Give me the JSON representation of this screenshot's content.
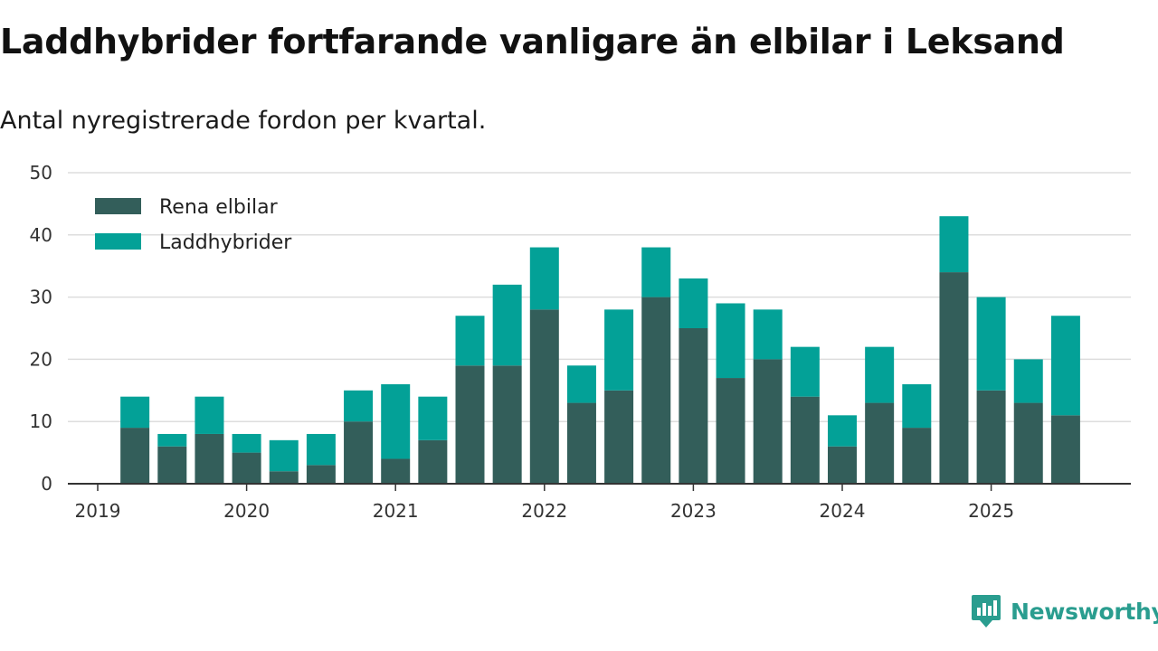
{
  "title": "Laddhybrider fortfarande vanligare än elbilar i Leksand",
  "subtitle": "Antal nyregistrerade fordon per kvartal.",
  "brand": {
    "name": "Newsworthy",
    "icon": "newsworthy-logo-icon",
    "color": "#2a9d8f"
  },
  "colors": {
    "rena": "#335e5a",
    "ladd": "#03a197",
    "grid": "#dddddd",
    "axis": "#333333"
  },
  "chart_data": {
    "type": "bar",
    "stacked": true,
    "categories": [
      "2019 Q2",
      "2019 Q3",
      "2019 Q4",
      "2020 Q1",
      "2020 Q2",
      "2020 Q3",
      "2020 Q4",
      "2021 Q1",
      "2021 Q2",
      "2021 Q3",
      "2021 Q4",
      "2022 Q1",
      "2022 Q2",
      "2022 Q3",
      "2022 Q4",
      "2023 Q1",
      "2023 Q2",
      "2023 Q3",
      "2023 Q4",
      "2024 Q1",
      "2024 Q2",
      "2024 Q3",
      "2024 Q4",
      "2025 Q1",
      "2025 Q2",
      "2025 Q3"
    ],
    "series": [
      {
        "name": "Rena elbilar",
        "values": [
          9,
          6,
          8,
          5,
          2,
          3,
          10,
          4,
          7,
          19,
          19,
          28,
          13,
          15,
          30,
          25,
          17,
          20,
          14,
          6,
          13,
          9,
          34,
          15,
          13,
          11
        ]
      },
      {
        "name": "Laddhybrider",
        "values": [
          5,
          2,
          6,
          3,
          5,
          5,
          5,
          12,
          7,
          8,
          13,
          10,
          6,
          13,
          8,
          8,
          12,
          8,
          8,
          5,
          9,
          7,
          9,
          15,
          7,
          16
        ]
      }
    ],
    "xticks": [
      "2019",
      "2020",
      "2021",
      "2022",
      "2023",
      "2024",
      "2025"
    ],
    "yticks": [
      0,
      10,
      20,
      30,
      40,
      50
    ],
    "ylim": [
      0,
      50
    ],
    "xlabel": "",
    "ylabel": "",
    "legend": "top-left",
    "grid": true
  }
}
